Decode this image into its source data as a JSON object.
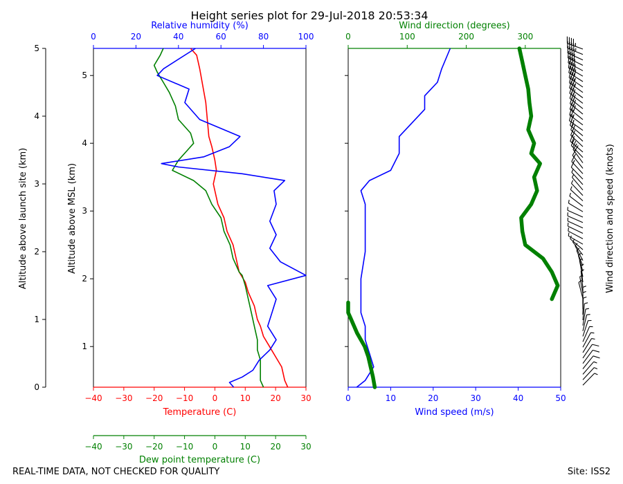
{
  "title": "Height series plot for 29-Jul-2018 20:53:34",
  "footer_left": "REAL-TIME DATA, NOT CHECKED FOR QUALITY",
  "footer_right": "Site: ISS2",
  "colors": {
    "temperature": "#ff0000",
    "dewpoint": "#008000",
    "rh": "#0000ff",
    "wspd": "#0000ff",
    "wdir": "#008000",
    "barbs": "#000000"
  },
  "chart_data": [
    {
      "type": "line",
      "panel": "thermodynamic",
      "axes": {
        "temperature": {
          "label": "Temperature (C)",
          "range": [
            -40,
            30
          ],
          "ticks": [
            "−40",
            "−30",
            "−20",
            "−10",
            "0",
            "10",
            "20",
            "30"
          ]
        },
        "dewpoint": {
          "label": "Dew point temperature (C)",
          "range": [
            -40,
            30
          ],
          "ticks": [
            "−40",
            "−30",
            "−20",
            "−10",
            "0",
            "10",
            "20",
            "30"
          ]
        },
        "relative_humidity": {
          "label": "Relative humidity (%)",
          "range": [
            0,
            100
          ],
          "ticks": [
            "0",
            "20",
            "40",
            "60",
            "80",
            "100"
          ]
        },
        "altitude_msl": {
          "label": "Altitude above MSL (km)",
          "ticks": [
            "1",
            "2",
            "3",
            "4",
            "5"
          ],
          "tick_km": [
            1,
            2,
            3,
            4,
            5
          ]
        },
        "altitude_site": {
          "label": "Altitude above launch site (km)",
          "ticks": [
            "0",
            "1",
            "2",
            "3",
            "4",
            "5"
          ],
          "tick_km": [
            0,
            1,
            2,
            3,
            4,
            5
          ]
        }
      },
      "y_range_km_msl": [
        0.4,
        5.4
      ],
      "series": [
        {
          "name": "Temperature",
          "var": "t",
          "points": [
            [
              24,
              0.4
            ],
            [
              23,
              0.5
            ],
            [
              22,
              0.7
            ],
            [
              20,
              0.85
            ],
            [
              18,
              1.0
            ],
            [
              16,
              1.15
            ],
            [
              15,
              1.3
            ],
            [
              14,
              1.4
            ],
            [
              13,
              1.6
            ],
            [
              11,
              1.8
            ],
            [
              10,
              1.95
            ],
            [
              8,
              2.1
            ],
            [
              7,
              2.3
            ],
            [
              6,
              2.5
            ],
            [
              4,
              2.7
            ],
            [
              3,
              2.9
            ],
            [
              1,
              3.1
            ],
            [
              -0.5,
              3.4
            ],
            [
              0.5,
              3.6
            ],
            [
              0,
              3.75
            ],
            [
              -1,
              3.95
            ],
            [
              -2,
              4.1
            ],
            [
              -2.5,
              4.35
            ],
            [
              -3,
              4.6
            ],
            [
              -4,
              4.85
            ],
            [
              -5,
              5.1
            ],
            [
              -6,
              5.3
            ],
            [
              -8,
              5.4
            ]
          ]
        },
        {
          "name": "Dew point",
          "var": "td",
          "points": [
            [
              16,
              0.4
            ],
            [
              15,
              0.5
            ],
            [
              15,
              0.65
            ],
            [
              15,
              0.8
            ],
            [
              14,
              0.95
            ],
            [
              14,
              1.1
            ],
            [
              13,
              1.3
            ],
            [
              12,
              1.5
            ],
            [
              11,
              1.7
            ],
            [
              10,
              1.9
            ],
            [
              9,
              2.05
            ],
            [
              8,
              2.1
            ],
            [
              6,
              2.3
            ],
            [
              5,
              2.5
            ],
            [
              3,
              2.7
            ],
            [
              2,
              2.9
            ],
            [
              -1,
              3.1
            ],
            [
              -3,
              3.3
            ],
            [
              -7,
              3.45
            ],
            [
              -14,
              3.6
            ],
            [
              -12,
              3.75
            ],
            [
              -9,
              3.9
            ],
            [
              -7,
              4.0
            ],
            [
              -8,
              4.15
            ],
            [
              -12,
              4.35
            ],
            [
              -13,
              4.55
            ],
            [
              -15,
              4.75
            ],
            [
              -17,
              4.9
            ],
            [
              -19,
              5.05
            ],
            [
              -20,
              5.15
            ],
            [
              -18,
              5.3
            ],
            [
              -17,
              5.4
            ]
          ]
        },
        {
          "name": "Relative humidity",
          "var": "rh",
          "points": [
            [
              66,
              0.4
            ],
            [
              64,
              0.47
            ],
            [
              70,
              0.55
            ],
            [
              75,
              0.65
            ],
            [
              78,
              0.8
            ],
            [
              83,
              0.95
            ],
            [
              86,
              1.1
            ],
            [
              82,
              1.3
            ],
            [
              84,
              1.5
            ],
            [
              86,
              1.7
            ],
            [
              82,
              1.9
            ],
            [
              100,
              2.05
            ],
            [
              88,
              2.25
            ],
            [
              83,
              2.45
            ],
            [
              86,
              2.65
            ],
            [
              83,
              2.85
            ],
            [
              86,
              3.1
            ],
            [
              85,
              3.3
            ],
            [
              90,
              3.45
            ],
            [
              70,
              3.55
            ],
            [
              40,
              3.65
            ],
            [
              32,
              3.7
            ],
            [
              52,
              3.8
            ],
            [
              64,
              3.95
            ],
            [
              69,
              4.1
            ],
            [
              50,
              4.35
            ],
            [
              43,
              4.6
            ],
            [
              45,
              4.8
            ],
            [
              30,
              5.0
            ],
            [
              33,
              5.1
            ],
            [
              48,
              5.4
            ]
          ]
        }
      ]
    },
    {
      "type": "line",
      "panel": "wind",
      "axes": {
        "wind_speed": {
          "label": "Wind speed (m/s)",
          "range": [
            0,
            50
          ],
          "ticks": [
            "0",
            "10",
            "20",
            "30",
            "40",
            "50"
          ]
        },
        "wind_direction": {
          "label": "Wind direction (degrees)",
          "range": [
            0,
            360
          ],
          "ticks": [
            "0",
            "100",
            "200",
            "300"
          ]
        },
        "barbs": {
          "label": "Wind direction and speed (knots)"
        }
      },
      "y_range_km_msl": [
        0.4,
        5.4
      ],
      "series": [
        {
          "name": "Wind speed",
          "var": "wspd",
          "points": [
            [
              2,
              0.4
            ],
            [
              4,
              0.5
            ],
            [
              6,
              0.7
            ],
            [
              5,
              0.9
            ],
            [
              4,
              1.1
            ],
            [
              4,
              1.3
            ],
            [
              3,
              1.5
            ],
            [
              3,
              1.7
            ],
            [
              3,
              2.0
            ],
            [
              4,
              2.4
            ],
            [
              4,
              2.8
            ],
            [
              4,
              3.1
            ],
            [
              3,
              3.3
            ],
            [
              5,
              3.45
            ],
            [
              10,
              3.6
            ],
            [
              12,
              3.85
            ],
            [
              12,
              4.1
            ],
            [
              15,
              4.3
            ],
            [
              18,
              4.5
            ],
            [
              18,
              4.7
            ],
            [
              21,
              4.9
            ],
            [
              22,
              5.1
            ],
            [
              24,
              5.4
            ]
          ]
        },
        {
          "name": "Wind direction",
          "var": "wdir",
          "points": [
            [
              45,
              0.4
            ],
            [
              42,
              0.55
            ],
            [
              38,
              0.7
            ],
            [
              34,
              0.85
            ],
            [
              28,
              1.0
            ],
            [
              15,
              1.2
            ],
            [
              5,
              1.4
            ],
            [
              0,
              1.5
            ],
            [
              0,
              1.65
            ],
            [
              345,
              1.7
            ],
            [
              355,
              1.9
            ],
            [
              345,
              2.1
            ],
            [
              330,
              2.3
            ],
            [
              300,
              2.5
            ],
            [
              295,
              2.7
            ],
            [
              293,
              2.9
            ],
            [
              310,
              3.1
            ],
            [
              320,
              3.3
            ],
            [
              315,
              3.5
            ],
            [
              325,
              3.7
            ],
            [
              310,
              3.85
            ],
            [
              315,
              4.0
            ],
            [
              305,
              4.2
            ],
            [
              310,
              4.4
            ],
            [
              307,
              4.6
            ],
            [
              305,
              4.8
            ],
            [
              300,
              5.0
            ],
            [
              295,
              5.2
            ],
            [
              290,
              5.4
            ]
          ]
        }
      ]
    }
  ]
}
